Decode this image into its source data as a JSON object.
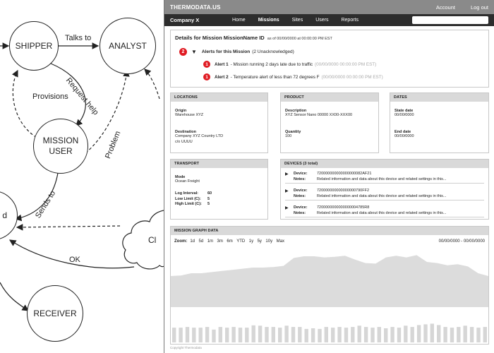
{
  "diagram": {
    "nodes": {
      "shipper": "SHIPPER",
      "analyst": "ANALYST",
      "mission_user": "MISSION\nUSER",
      "receiver": "RECEIVER",
      "partial_left": "d",
      "partial_cloud": "Cl"
    },
    "edges": {
      "talks_to": "Talks to",
      "request_help": "Request help",
      "provisions": "Provisions",
      "problem": "Problem",
      "sends_to": "Sends to",
      "ok": "OK"
    }
  },
  "topbar": {
    "brand": "THERMODATA.US",
    "links": [
      "Account",
      "Log out"
    ]
  },
  "navbar": {
    "company": "Company X",
    "items": [
      "Home",
      "Missions",
      "Sites",
      "Users",
      "Reports"
    ],
    "active": "Missions"
  },
  "details": {
    "title": "Details for Mission MissionName ID",
    "as_of": "as of 00/00/0000 at 00:00:00 PM EST",
    "alert_count": "2",
    "alerts_title": "Alerts for this Mission",
    "alerts_subtitle": "(2 Unacknowledged)",
    "alerts": [
      {
        "badge": "1",
        "name": "Alert 1",
        "text": "- Mission running 2 days late due to traffic",
        "timestamp": "(00/00/0000 00:00:00 PM EST)"
      },
      {
        "badge": "1",
        "name": "Alert 2",
        "text": "- Temperature alert of less than 72 degrees F",
        "timestamp": "(00/00/0000 00:00:00 PM EST)"
      }
    ]
  },
  "locations": {
    "header": "LOCATIONS",
    "origin_label": "Origin",
    "origin_value": "Warehouse XYZ",
    "destination_label": "Destination",
    "destination_line1": "Company XYZ Country LTD",
    "destination_line2": "c/o UUUU"
  },
  "product": {
    "header": "PRODUCT",
    "description_label": "Description",
    "description_value": "XYZ Sensor Nano 00000 XX00-XXX00",
    "quantity_label": "Quantity",
    "quantity_value": "100"
  },
  "dates": {
    "header": "DATES",
    "state_label": "State date",
    "state_value": "00/00/0000",
    "end_label": "End date",
    "end_value": "00/00/0000"
  },
  "transport": {
    "header": "TRANSPORT",
    "mode_label": "Mode",
    "mode_value": "Ocean Freight",
    "log_interval_label": "Log Interval:",
    "log_interval_value": "60",
    "low_limit_label": "Low Limit (C):",
    "low_limit_value": "5",
    "high_limit_label": "High Limit (C):",
    "high_limit_value": "5"
  },
  "devices": {
    "header": "DEVICES (3 total)",
    "device_label": "Device:",
    "notes_label": "Notes:",
    "items": [
      {
        "id": "720000000000000000082AF21",
        "notes": "Related information and data about this device and related settings in this..."
      },
      {
        "id": "720000000000000000790FF2",
        "notes": "Related information and data about this device and related settings in this..."
      },
      {
        "id": "7200000000000000004785R8",
        "notes": "Related information and data about this device and related settings in this..."
      }
    ]
  },
  "graph": {
    "header": "MISSION GRAPH DATA",
    "zoom_label": "Zoom:",
    "zoom_options": [
      "1d",
      "5d",
      "1m",
      "3m",
      "6m",
      "YTD",
      "1y",
      "5y",
      "10y",
      "Max"
    ],
    "range": "00/00/0000 - 00/00/0000",
    "area_color": "#dcdcdc",
    "bar_color": "#d6d6d6",
    "area_levels": [
      0.45,
      0.44,
      0.4,
      0.4,
      0.38,
      0.36,
      0.34,
      0.32,
      0.3,
      0.3,
      0.29,
      0.27,
      0.13,
      0.1,
      0.1,
      0.12,
      0.11,
      0.09,
      0.16,
      0.22,
      0.23,
      0.12,
      0.09,
      0.12,
      0.08,
      0.2,
      0.22,
      0.26,
      0.24,
      0.28,
      0.4,
      0.45
    ],
    "bar_levels": [
      0.28,
      0.28,
      0.3,
      0.28,
      0.28,
      0.3,
      0.22,
      0.3,
      0.28,
      0.3,
      0.28,
      0.28,
      0.35,
      0.34,
      0.3,
      0.3,
      0.28,
      0.34,
      0.3,
      0.3,
      0.24,
      0.26,
      0.24,
      0.3,
      0.28,
      0.3,
      0.28,
      0.3,
      0.34,
      0.3,
      0.28,
      0.3,
      0.26,
      0.3,
      0.28,
      0.34,
      0.3,
      0.36,
      0.38,
      0.4,
      0.36,
      0.3,
      0.28,
      0.3,
      0.34,
      0.3,
      0.28,
      0.3
    ]
  },
  "footer": {
    "copyright": "Copyright Thermodata"
  }
}
